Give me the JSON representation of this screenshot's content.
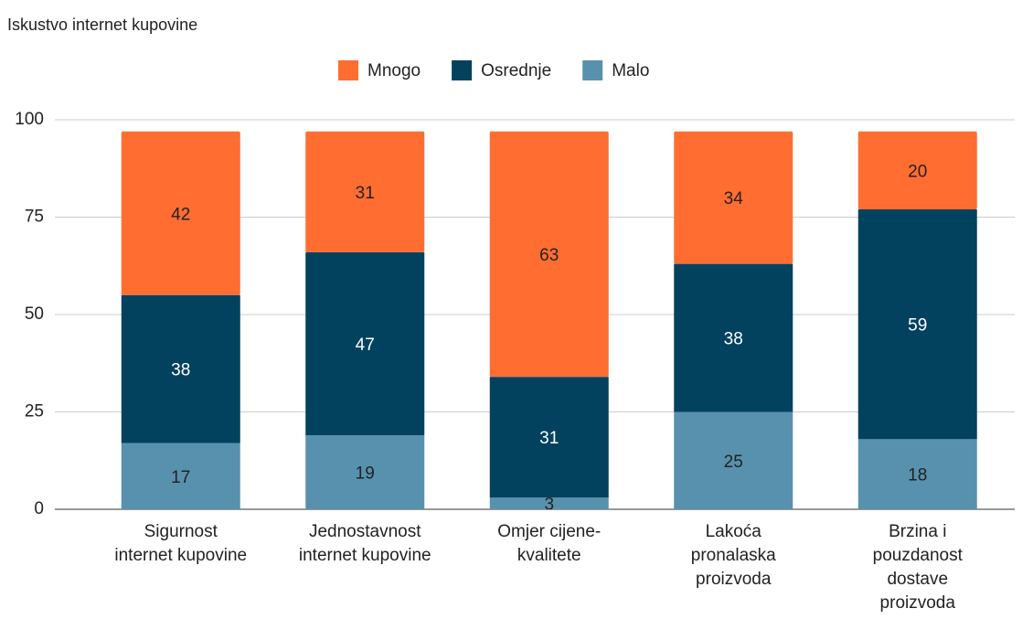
{
  "chart_data": {
    "type": "stacked_bar",
    "title": "Iskustvo internet kupovine",
    "categories": [
      "Sigurnost\ninternet kupovine",
      "Jednostavnost\ninternet kupovine",
      "Omjer cijene-\nkvalitete",
      "Lakoća\npronalaska\nproizvoda",
      "Brzina i\npouzdanost\ndostave\nproizvoda"
    ],
    "series": [
      {
        "name": "Mnogo",
        "color": "#ff6d31",
        "values": [
          42,
          31,
          63,
          34,
          20
        ]
      },
      {
        "name": "Osrednje",
        "color": "#02425f",
        "values": [
          38,
          47,
          31,
          38,
          59
        ]
      },
      {
        "name": "Malo",
        "color": "#5891ae",
        "values": [
          17,
          19,
          3,
          25,
          18
        ]
      }
    ],
    "ylim": [
      0,
      100
    ],
    "yticks": [
      0,
      25,
      50,
      75,
      100
    ],
    "grid": true,
    "legend": "top"
  }
}
